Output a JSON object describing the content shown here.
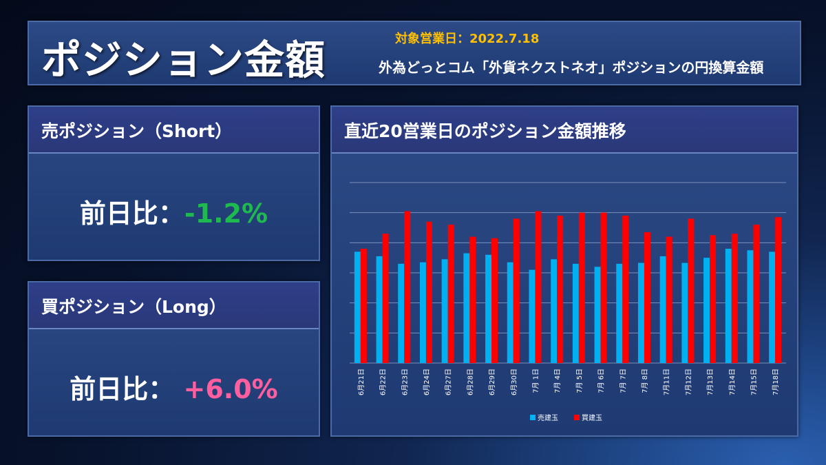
{
  "header": {
    "title": "ポジション金額",
    "date": "対象営業日：2022.7.18",
    "subtitle": "外為どっとコム「外貨ネクストネオ」ポジションの円換算金額"
  },
  "short": {
    "title": "売ポジション（Short）",
    "ratio_label": "前日比：",
    "ratio_value": "-1.2%",
    "color": "#1fba4f"
  },
  "long": {
    "title": "買ポジション（Long）",
    "ratio_label": "前日比：",
    "ratio_value": "+6.0%",
    "color": "#ff5f9e"
  },
  "chart": {
    "title": "直近20営業日のポジション金額推移"
  },
  "chart_data": {
    "type": "bar",
    "categories": [
      "6月21日",
      "6月22日",
      "6月23日",
      "6月24日",
      "6月27日",
      "6月28日",
      "6月29日",
      "6月30日",
      "7月 1日",
      "7月 4日",
      "7月 5日",
      "7月 6日",
      "7月 7日",
      "7月 8日",
      "7月11日",
      "7月12日",
      "7月13日",
      "7月14日",
      "7月15日",
      "7月18日"
    ],
    "series": [
      {
        "name": "売建玉",
        "color": "#00b0f0",
        "values": [
          3.7,
          3.55,
          3.3,
          3.35,
          3.45,
          3.65,
          3.6,
          3.35,
          3.1,
          3.45,
          3.3,
          3.2,
          3.3,
          3.33,
          3.55,
          3.33,
          3.5,
          3.8,
          3.75,
          3.7
        ]
      },
      {
        "name": "買建玉",
        "color": "#ff0000",
        "values": [
          3.8,
          4.3,
          5.05,
          4.7,
          4.6,
          4.2,
          4.15,
          4.8,
          5.05,
          4.9,
          5.0,
          5.0,
          4.9,
          4.35,
          4.2,
          4.8,
          4.25,
          4.3,
          4.6,
          4.85
        ]
      }
    ],
    "ylim": [
      0,
      6
    ],
    "grid": true,
    "legend": "bottom"
  }
}
